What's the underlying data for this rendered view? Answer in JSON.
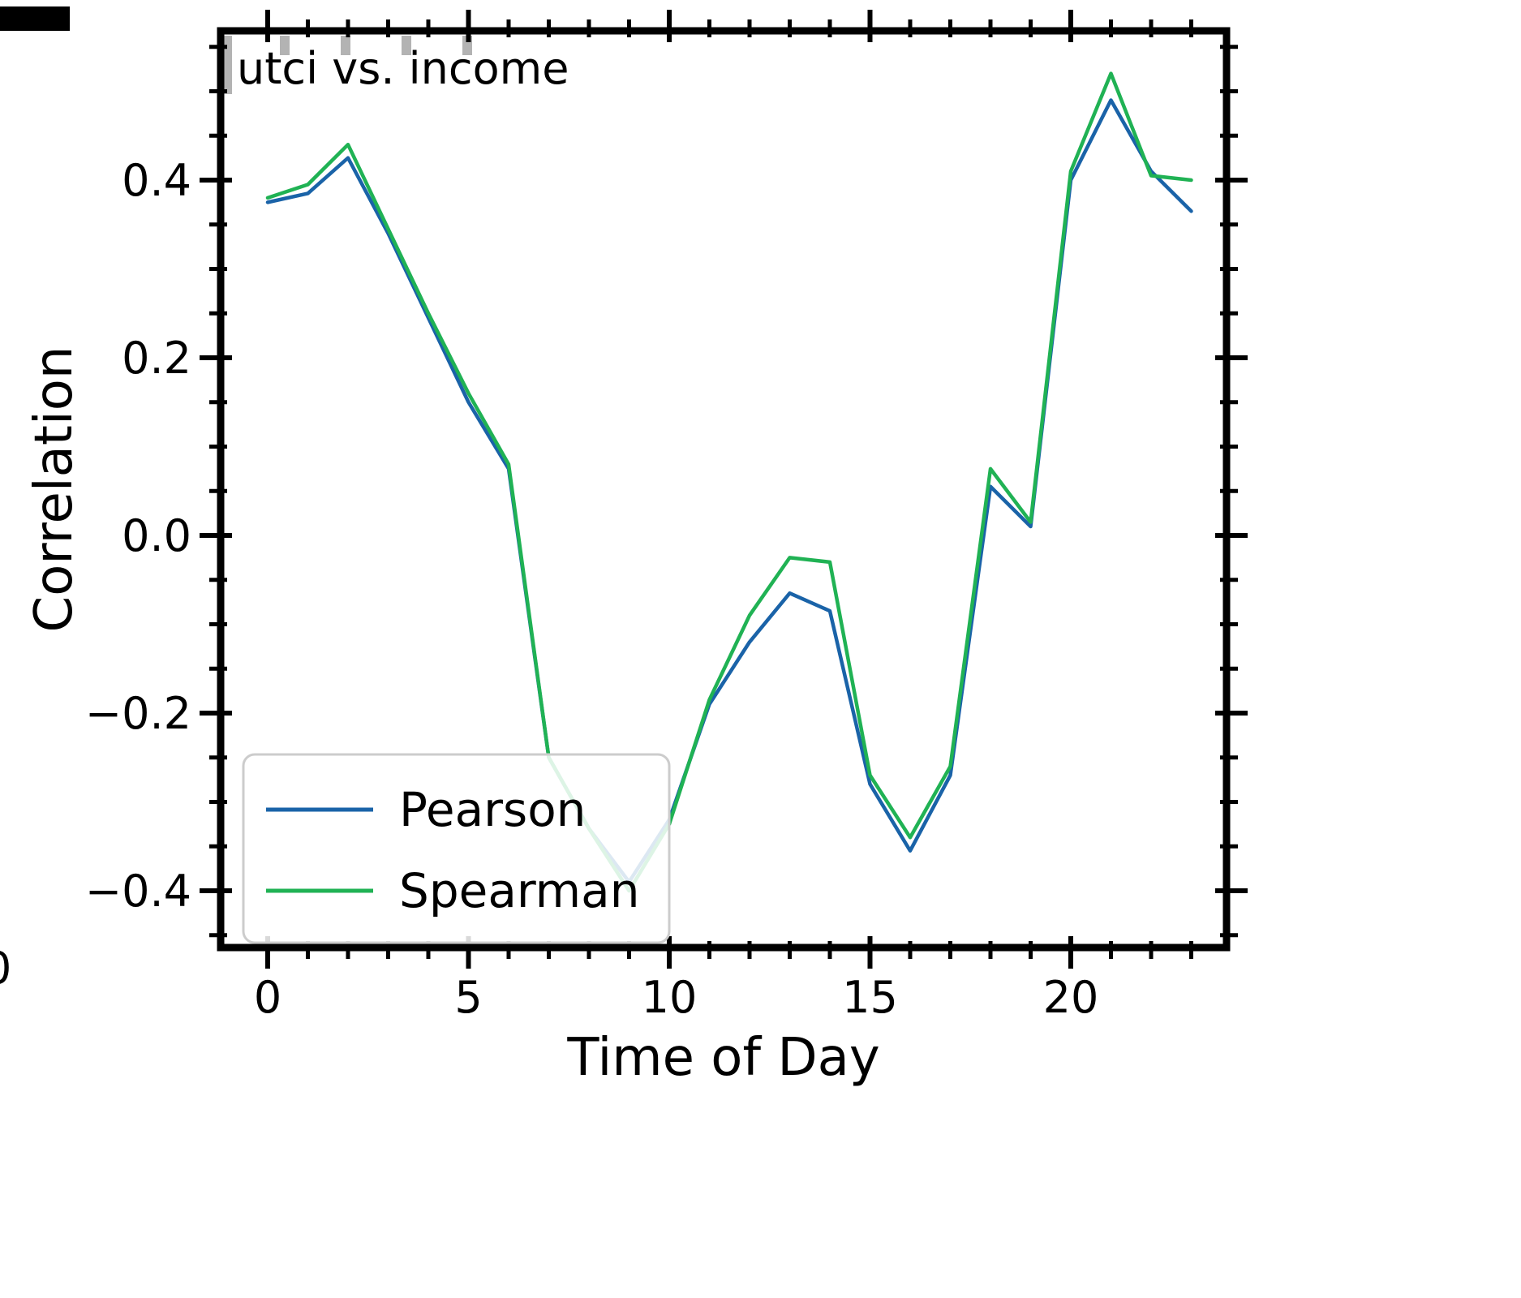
{
  "chart_data": {
    "type": "line",
    "title": "utci vs. income",
    "xlabel": "Time of Day",
    "ylabel": "Correlation",
    "x": [
      0,
      1,
      2,
      3,
      4,
      5,
      6,
      7,
      8,
      9,
      10,
      11,
      12,
      13,
      14,
      15,
      16,
      17,
      18,
      19,
      20,
      21,
      22,
      23
    ],
    "series": [
      {
        "name": "Pearson",
        "color": "#1a63a8",
        "values": [
          0.375,
          0.385,
          0.425,
          0.34,
          0.245,
          0.15,
          0.075,
          -0.25,
          -0.33,
          -0.39,
          -0.32,
          -0.19,
          -0.12,
          -0.065,
          -0.085,
          -0.28,
          -0.355,
          -0.27,
          0.055,
          0.01,
          0.4,
          0.49,
          0.41,
          0.365
        ]
      },
      {
        "name": "Spearman",
        "color": "#20b254",
        "values": [
          0.38,
          0.395,
          0.44,
          0.345,
          0.25,
          0.16,
          0.08,
          -0.25,
          -0.33,
          -0.4,
          -0.325,
          -0.185,
          -0.09,
          -0.025,
          -0.03,
          -0.27,
          -0.34,
          -0.26,
          0.075,
          0.015,
          0.41,
          0.52,
          0.405,
          0.4
        ]
      }
    ],
    "xlim": [
      -1.2,
      23.9
    ],
    "ylim": [
      -0.46,
      0.57
    ],
    "grid": false,
    "legend": {
      "position": "lower left",
      "entries": [
        "Pearson",
        "Spearman"
      ]
    },
    "xticks": {
      "major": [
        0,
        5,
        10,
        15,
        20
      ],
      "major_labels": [
        "0",
        "5",
        "10",
        "15",
        "20"
      ],
      "minor": [
        1,
        2,
        3,
        4,
        6,
        7,
        8,
        9,
        11,
        12,
        13,
        14,
        16,
        17,
        18,
        19,
        21,
        22,
        23
      ]
    },
    "yticks": {
      "major": [
        0.4,
        0.2,
        0.0,
        -0.2,
        -0.4
      ],
      "major_labels": [
        "0.4",
        "0.2",
        "0.0",
        "−0.2",
        "−0.4"
      ],
      "minor": [
        -0.45,
        -0.35,
        -0.3,
        -0.25,
        -0.15,
        -0.1,
        -0.05,
        0.05,
        0.1,
        0.15,
        0.25,
        0.3,
        0.35,
        0.45,
        0.5,
        0.55
      ]
    },
    "colors": {
      "spine": "#000000",
      "text": "#000000",
      "legend_border": "#cccccc"
    }
  },
  "artifacts": {
    "clipped_tick_label": "0"
  }
}
